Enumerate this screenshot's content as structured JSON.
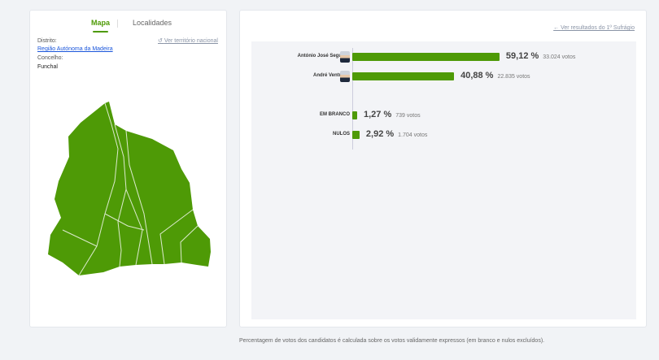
{
  "left_panel": {
    "tabs": [
      {
        "label": "Mapa",
        "active": true
      },
      {
        "label": "Localidades",
        "active": false
      }
    ],
    "distrito_label": "Distrito:",
    "distrito_value": "Região Autónoma da Madeira",
    "concelho_label": "Concelho:",
    "concelho_value": "Funchal",
    "national_link": "Ver território nacional",
    "map_color": "#4e9a06"
  },
  "right_panel": {
    "first_round_link": "Ver resultados do 1º Sufrágio",
    "candidates": [
      {
        "name": "António José Seguro",
        "pct": 59.12,
        "pct_label": "59,12 %",
        "votes": "33.024 votos"
      },
      {
        "name": "André Ventura",
        "pct": 40.88,
        "pct_label": "40,88 %",
        "votes": "22.835 votos"
      }
    ],
    "others": [
      {
        "name": "EM BRANCO",
        "pct": 1.27,
        "pct_label": "1,27 %",
        "votes": "739 votos"
      },
      {
        "name": "NULOS",
        "pct": 2.92,
        "pct_label": "2,92 %",
        "votes": "1.704 votos"
      }
    ],
    "bar_color": "#4e9a06"
  },
  "footnote": "Percentagem de votos dos candidatos é calculada sobre os votos validamente expressos (em branco e nulos excluídos)."
}
